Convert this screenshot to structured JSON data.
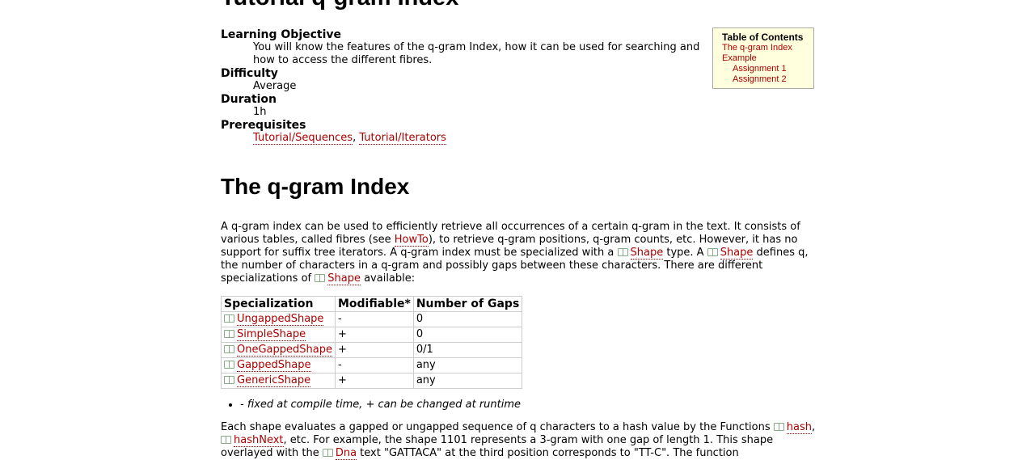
{
  "page": {
    "title": "Tutorial q-gram Index",
    "meta": {
      "learning_objective_label": "Learning Objective",
      "learning_objective_text": "You will know the features of the q-gram Index, how it can be used for searching and how to access the different fibres.",
      "difficulty_label": "Difficulty",
      "difficulty_value": "Average",
      "duration_label": "Duration",
      "duration_value": "1h",
      "prerequisites_label": "Prerequisites",
      "prerequisite_1": "Tutorial/Sequences",
      "prerequisite_sep": ", ",
      "prerequisite_2": "Tutorial/Iterators"
    },
    "section_heading": "The q-gram Index",
    "para1": {
      "t1": "A q-gram index can be used to efficiently retrieve all occurrences of a certain q-gram in the text. It consists of various tables, called fibres (see ",
      "link_howto": "HowTo",
      "t2": "), to retrieve q-gram positions, q-gram counts, etc. However, it has no support for suffix tree iterators. A q-gram index must be specialized with a ",
      "link_shape1": "Shape",
      "t3": " type. A ",
      "link_shape2": "Shape",
      "t4": " defines q, the number of characters in a q-gram and possibly gaps between these characters. There are different specializations of ",
      "link_shape3": "Shape",
      "t5": " available:"
    },
    "table": {
      "headers": [
        "Specialization",
        "Modifiable*",
        "Number of Gaps"
      ],
      "rows": [
        {
          "name": "UngappedShape",
          "modifiable": "-",
          "gaps": "0"
        },
        {
          "name": "SimpleShape",
          "modifiable": "+",
          "gaps": "0"
        },
        {
          "name": "OneGappedShape",
          "modifiable": "+",
          "gaps": "0/1"
        },
        {
          "name": "GappedShape",
          "modifiable": "-",
          "gaps": "any"
        },
        {
          "name": "GenericShape",
          "modifiable": "+",
          "gaps": "any"
        }
      ]
    },
    "footnote": "- fixed at compile time, + can be changed at runtime",
    "para2": {
      "t1": "Each shape evaluates a gapped or ungapped sequence of q characters to a hash value by the Functions ",
      "link_hash": "hash",
      "t2": ", ",
      "link_hashnext": "hashNext",
      "t3": ", etc. For example, the shape 1101 represents a 3-gram with one gap of length 1. This shape overlayed with the ",
      "link_dna": "Dna",
      "t4": " text \"GATTACA\" at the third position corresponds to \"TT-C\". The function"
    }
  },
  "toc": {
    "title": "Table of Contents",
    "items": [
      "The q-gram Index",
      "Example",
      "Assignment 1",
      "Assignment 2"
    ]
  },
  "colors": {
    "link": "#aa0000",
    "toc_background": "#ffffdd"
  },
  "icons": {
    "doc_link": "book-icon"
  }
}
